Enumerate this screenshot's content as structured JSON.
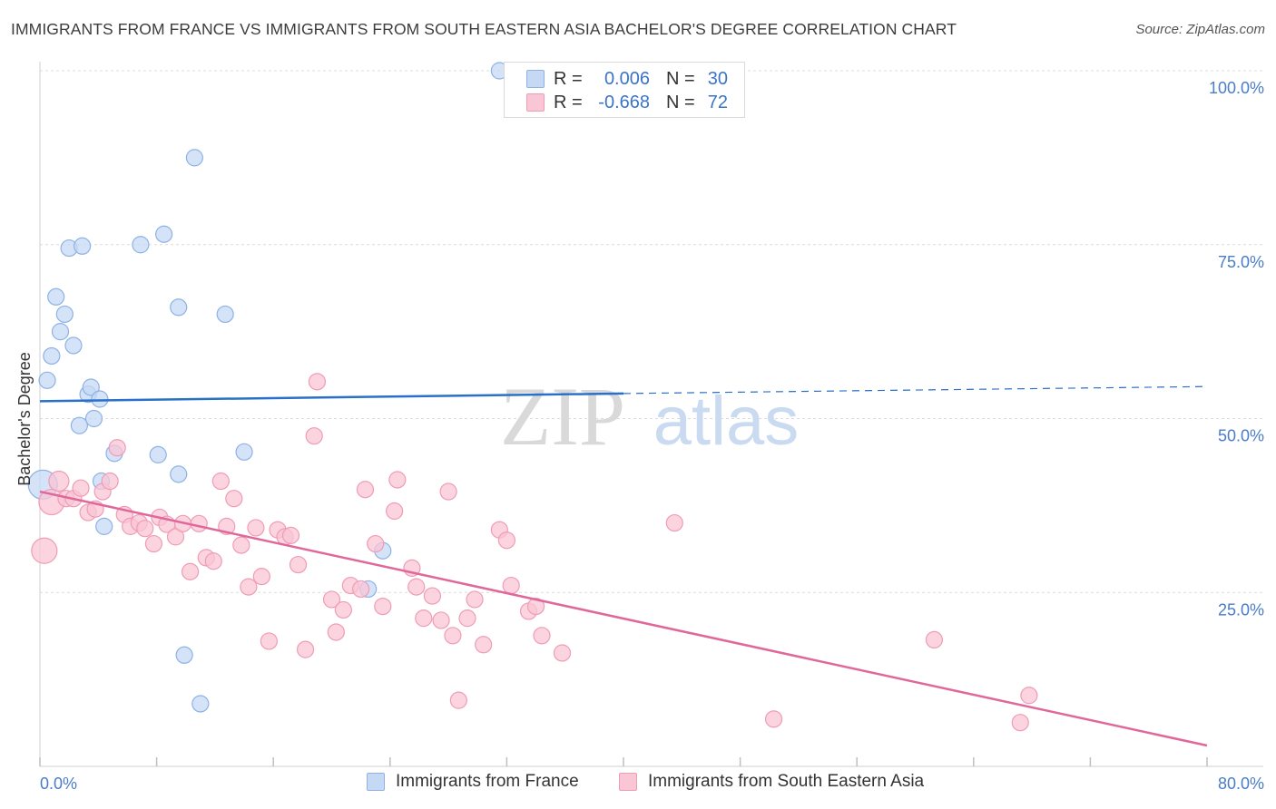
{
  "header": {
    "title": "IMMIGRANTS FROM FRANCE VS IMMIGRANTS FROM SOUTH EASTERN ASIA BACHELOR'S DEGREE CORRELATION CHART",
    "source": "Source: ZipAtlas.com"
  },
  "watermark": {
    "zip": "ZIP",
    "atlas": "atlas"
  },
  "legend_top": {
    "rows": [
      {
        "r_label": "R =",
        "r_value": "0.006",
        "n_label": "N =",
        "n_value": "30"
      },
      {
        "r_label": "R =",
        "r_value": "-0.668",
        "n_label": "N =",
        "n_value": "72"
      }
    ]
  },
  "legend_bottom": {
    "items": [
      {
        "label": "Immigrants from France"
      },
      {
        "label": "Immigrants from South Eastern Asia"
      }
    ]
  },
  "colors": {
    "blue_fill": "#c5d9f4",
    "blue_stroke": "#8eb2e4",
    "blue_line": "#2a70c8",
    "pink_fill": "#f9c6d5",
    "pink_stroke": "#ef9cb6",
    "pink_line": "#e0679a",
    "axis_label": "#4a7cc9",
    "grid": "#dcdcdc"
  },
  "chart_data": {
    "type": "scatter",
    "ylabel": "Bachelor's Degree",
    "xlim": [
      0,
      80
    ],
    "ylim": [
      0,
      100
    ],
    "x_tick_labels": [
      "0.0%",
      "80.0%"
    ],
    "y_tick_labels": [
      "100.0%",
      "75.0%",
      "50.0%",
      "25.0%"
    ],
    "y_tick_values": [
      100,
      75,
      50,
      25
    ],
    "grid": true,
    "series": [
      {
        "name": "Immigrants from France",
        "color": "blue",
        "trend": {
          "x0": 0,
          "y0": 52.5,
          "x1": 40,
          "y1": 53.6,
          "dash_to_x": 80,
          "dash_to_y": 54.6
        },
        "points": [
          [
            0.2,
            40.5,
            16
          ],
          [
            0.5,
            55.5,
            9
          ],
          [
            0.8,
            59,
            9
          ],
          [
            1.1,
            67.5,
            9
          ],
          [
            1.4,
            62.5,
            9
          ],
          [
            1.7,
            65,
            9
          ],
          [
            2.0,
            74.5,
            9
          ],
          [
            2.3,
            60.5,
            9
          ],
          [
            2.7,
            49,
            9
          ],
          [
            2.9,
            74.8,
            9
          ],
          [
            3.3,
            53.5,
            9
          ],
          [
            3.5,
            54.5,
            9
          ],
          [
            3.7,
            50,
            9
          ],
          [
            4.1,
            52.8,
            9
          ],
          [
            4.2,
            41,
            9
          ],
          [
            4.4,
            34.5,
            9
          ],
          [
            5.1,
            45,
            9
          ],
          [
            6.9,
            75,
            9
          ],
          [
            8.1,
            44.8,
            9
          ],
          [
            8.5,
            76.5,
            9
          ],
          [
            9.5,
            66,
            9
          ],
          [
            9.5,
            42,
            9
          ],
          [
            9.9,
            16,
            9
          ],
          [
            10.6,
            87.5,
            9
          ],
          [
            11.0,
            9,
            9
          ],
          [
            12.7,
            65,
            9
          ],
          [
            14.0,
            45.2,
            9
          ],
          [
            22.5,
            25.5,
            9
          ],
          [
            23.5,
            31,
            9
          ],
          [
            31.5,
            100,
            9
          ]
        ]
      },
      {
        "name": "Immigrants from South Eastern Asia",
        "color": "pink",
        "trend": {
          "x0": 0,
          "y0": 39.5,
          "x1": 80,
          "y1": 3
        },
        "points": [
          [
            0.3,
            31,
            14
          ],
          [
            0.8,
            38,
            14
          ],
          [
            1.3,
            41,
            11
          ],
          [
            1.8,
            38.5,
            9
          ],
          [
            2.3,
            38.5,
            9
          ],
          [
            2.8,
            40,
            9
          ],
          [
            3.3,
            36.5,
            9
          ],
          [
            3.8,
            37,
            9
          ],
          [
            4.3,
            39.5,
            9
          ],
          [
            4.8,
            41,
            9
          ],
          [
            5.3,
            45.8,
            9
          ],
          [
            5.8,
            36.2,
            9
          ],
          [
            6.2,
            34.5,
            9
          ],
          [
            6.8,
            35,
            9
          ],
          [
            7.2,
            34.2,
            9
          ],
          [
            7.8,
            32,
            9
          ],
          [
            8.2,
            35.8,
            9
          ],
          [
            8.7,
            34.8,
            9
          ],
          [
            9.3,
            33,
            9
          ],
          [
            9.8,
            34.9,
            9
          ],
          [
            10.3,
            28,
            9
          ],
          [
            10.9,
            34.9,
            9
          ],
          [
            11.4,
            30,
            9
          ],
          [
            11.9,
            29.5,
            9
          ],
          [
            12.4,
            41,
            9
          ],
          [
            12.8,
            34.5,
            9
          ],
          [
            13.3,
            38.5,
            9
          ],
          [
            13.8,
            31.8,
            9
          ],
          [
            14.3,
            25.8,
            9
          ],
          [
            14.8,
            34.3,
            9
          ],
          [
            15.2,
            27.3,
            9
          ],
          [
            15.7,
            18,
            9
          ],
          [
            16.3,
            34,
            9
          ],
          [
            16.8,
            33,
            9
          ],
          [
            17.2,
            33.2,
            9
          ],
          [
            17.7,
            29,
            9
          ],
          [
            18.2,
            16.8,
            9
          ],
          [
            18.8,
            47.5,
            9
          ],
          [
            19.0,
            55.3,
            9
          ],
          [
            20.0,
            24,
            9
          ],
          [
            20.3,
            19.3,
            9
          ],
          [
            20.8,
            22.5,
            9
          ],
          [
            21.3,
            26,
            9
          ],
          [
            22.0,
            25.5,
            9
          ],
          [
            22.3,
            39.8,
            9
          ],
          [
            23.0,
            32,
            9
          ],
          [
            23.5,
            23,
            9
          ],
          [
            24.3,
            36.7,
            9
          ],
          [
            24.5,
            41.2,
            9
          ],
          [
            25.5,
            28.5,
            9
          ],
          [
            25.8,
            25.8,
            9
          ],
          [
            26.3,
            21.3,
            9
          ],
          [
            26.9,
            24.5,
            9
          ],
          [
            27.5,
            21,
            9
          ],
          [
            28.0,
            39.5,
            9
          ],
          [
            28.3,
            18.8,
            9
          ],
          [
            28.7,
            9.5,
            9
          ],
          [
            29.3,
            21.3,
            9
          ],
          [
            29.8,
            24,
            9
          ],
          [
            30.4,
            17.5,
            9
          ],
          [
            31.5,
            34,
            9
          ],
          [
            32.0,
            32.5,
            9
          ],
          [
            32.3,
            26,
            9
          ],
          [
            33.5,
            22.3,
            9
          ],
          [
            34.0,
            23,
            9
          ],
          [
            34.4,
            18.8,
            9
          ],
          [
            35.8,
            16.3,
            9
          ],
          [
            43.5,
            35,
            9
          ],
          [
            50.3,
            6.8,
            9
          ],
          [
            61.3,
            18.2,
            9
          ],
          [
            67.2,
            6.3,
            9
          ],
          [
            67.8,
            10.2,
            9
          ]
        ]
      }
    ]
  }
}
